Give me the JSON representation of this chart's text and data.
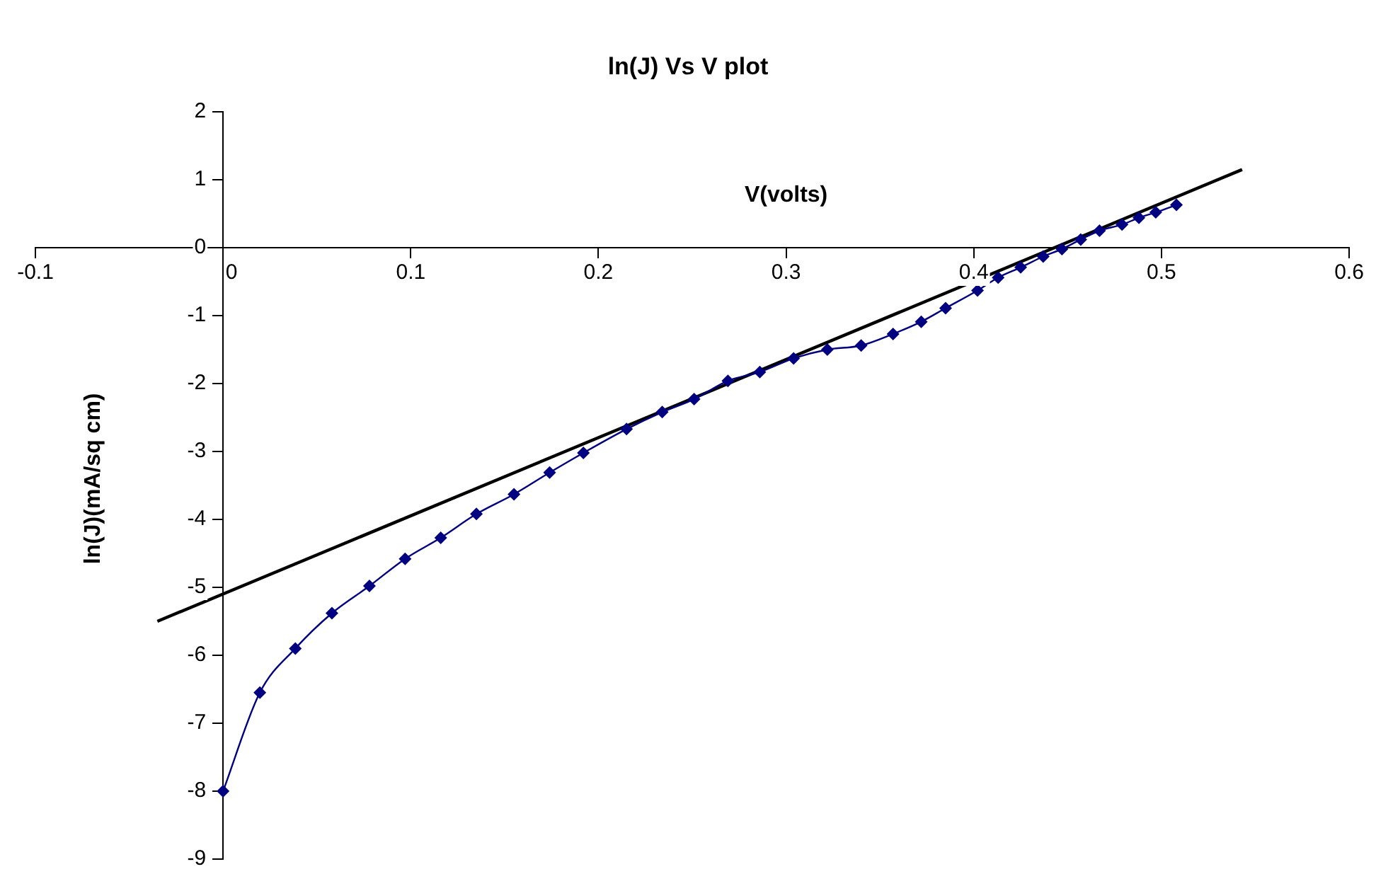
{
  "chart_data": {
    "type": "line",
    "title": "ln(J) Vs V plot",
    "xlabel": "V(volts)",
    "ylabel": "ln(J)(mA/sq cm)",
    "xlim": [
      -0.1,
      0.6
    ],
    "xticks": [
      -0.1,
      0,
      0.1,
      0.2,
      0.3,
      0.4,
      0.5,
      0.6
    ],
    "ylim": [
      -9,
      2
    ],
    "yticks": [
      -9,
      -8,
      -7,
      -6,
      -5,
      -4,
      -3,
      -2,
      -1,
      0,
      1,
      2
    ],
    "grid": false,
    "legend": false,
    "marker": "diamond",
    "line_style": "solid",
    "series": [
      {
        "color": "#000080",
        "x": [
          0,
          0.0196,
          0.0385,
          0.058,
          0.078,
          0.097,
          0.116,
          0.135,
          0.155,
          0.174,
          0.192,
          0.215,
          0.234,
          0.251,
          0.269,
          0.286,
          0.304,
          0.322,
          0.34,
          0.357,
          0.372,
          0.385,
          0.402,
          0.413,
          0.425,
          0.437,
          0.447,
          0.457,
          0.467,
          0.479,
          0.488,
          0.497,
          0.508
        ],
        "values": [
          -8.0,
          -6.55,
          -5.9,
          -5.38,
          -4.98,
          -4.58,
          -4.27,
          -3.92,
          -3.63,
          -3.31,
          -3.02,
          -2.67,
          -2.42,
          -2.23,
          -1.96,
          -1.83,
          -1.63,
          -1.5,
          -1.44,
          -1.27,
          -1.09,
          -0.89,
          -0.63,
          -0.44,
          -0.29,
          -0.13,
          -0.02,
          0.12,
          0.25,
          0.34,
          0.44,
          0.52,
          0.63
        ]
      },
      {
        "type": "line",
        "color": "#000000",
        "marker": "none",
        "x": [
          -0.035,
          0.543
        ],
        "values": [
          -5.5,
          1.15
        ]
      }
    ]
  }
}
